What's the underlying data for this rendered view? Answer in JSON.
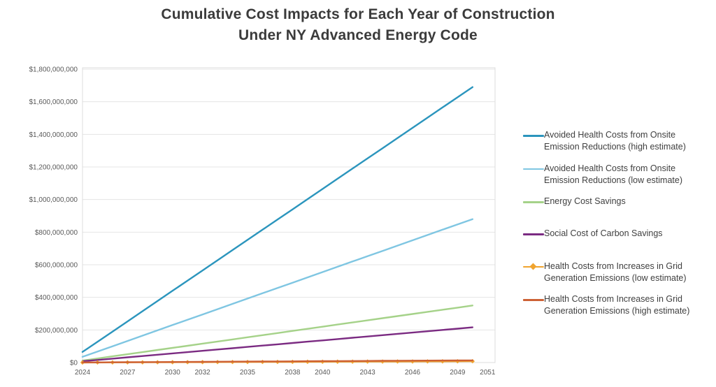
{
  "title": {
    "line1": "Cumulative Cost Impacts for Each Year of Construction",
    "line2": "Under NY Advanced Energy Code"
  },
  "chart_data": {
    "type": "line",
    "title": "Cumulative Cost Impacts for Each Year of Construction Under NY Advanced Energy Code",
    "xlabel": "",
    "ylabel": "",
    "grid": true,
    "legend_position": "right",
    "values_unit": "million USD",
    "x_axis": {
      "min": 2024,
      "max": 2051,
      "ticks": [
        2024,
        2027,
        2030,
        2032,
        2035,
        2038,
        2040,
        2043,
        2046,
        2049,
        2051
      ]
    },
    "y_axis": {
      "min": 0,
      "max": 1800000000,
      "tick_step": 200000000,
      "tick_labels": [
        "$1,800,000,000",
        "$1,600,000,000",
        "$1,400,000,000",
        "$1,200,000,000",
        "$1,000,000,000",
        "$800,000,000",
        "$600,000,000",
        "$400,000,000",
        "$200,000,000",
        "$0"
      ]
    },
    "years": [
      2024,
      2025,
      2026,
      2027,
      2028,
      2029,
      2030,
      2031,
      2032,
      2033,
      2034,
      2035,
      2036,
      2037,
      2038,
      2039,
      2040,
      2041,
      2042,
      2043,
      2044,
      2045,
      2046,
      2047,
      2048,
      2049,
      2050
    ],
    "series": [
      {
        "name": "Avoided Health Costs from Onsite Emission Reductions (high estimate)",
        "color": "#2b95bd",
        "marker": "none",
        "values": [
          65,
          127.5,
          190,
          252.5,
          315,
          377.5,
          440,
          502.5,
          565,
          627.5,
          690,
          752.5,
          815,
          877.5,
          940,
          1002.5,
          1065,
          1127.5,
          1190,
          1252.5,
          1315,
          1377.5,
          1440,
          1502.5,
          1565,
          1627.5,
          1690
        ]
      },
      {
        "name": "Avoided Health Costs from Onsite Emission Reductions (low estimate)",
        "color": "#7fc6e2",
        "marker": "none",
        "values": [
          35,
          67.5,
          100,
          132.5,
          165,
          197.5,
          230,
          262.5,
          295,
          327.5,
          360,
          392.5,
          425,
          457.5,
          490,
          522.5,
          555,
          587.5,
          620,
          652.5,
          685,
          717.5,
          750,
          782.5,
          815,
          847.5,
          880
        ]
      },
      {
        "name": "Energy Cost Savings",
        "color": "#a5d289",
        "marker": "none",
        "values": [
          12,
          25,
          38,
          51,
          64,
          77,
          90,
          103,
          116,
          129,
          142,
          155,
          168,
          181,
          194,
          207,
          220,
          233,
          246,
          259,
          272,
          285,
          298,
          311,
          324,
          337,
          350
        ]
      },
      {
        "name": "Social Cost of Carbon Savings",
        "color": "#7b2b82",
        "marker": "none",
        "values": [
          8,
          16,
          24,
          32,
          40,
          48,
          56,
          64,
          72,
          80,
          88,
          96,
          104,
          112,
          120,
          128,
          136,
          144,
          152,
          160,
          168,
          176,
          184,
          192,
          200,
          208,
          216
        ]
      },
      {
        "name": "Health Costs from Increases in Grid Generation Emissions (low estimate)",
        "color": "#f0a42f",
        "marker": "diamond",
        "values": [
          0.3,
          0.6,
          0.9,
          1.2,
          1.5,
          1.8,
          2.1,
          2.4,
          2.7,
          3.0,
          3.3,
          3.6,
          3.9,
          4.2,
          4.5,
          4.8,
          5.1,
          5.4,
          5.7,
          6.0,
          6.3,
          6.6,
          6.9,
          7.2,
          7.5,
          7.8,
          8.1
        ]
      },
      {
        "name": "Health Costs from Increases in Grid Generation Emissions (high estimate)",
        "color": "#cd6135",
        "marker": "none",
        "values": [
          0.5,
          1.0,
          1.5,
          2.0,
          2.5,
          3.0,
          3.5,
          4.0,
          4.5,
          5.0,
          5.5,
          6.0,
          6.5,
          7.0,
          7.5,
          8.0,
          8.5,
          9.0,
          9.5,
          10.0,
          10.5,
          11.0,
          11.5,
          12.0,
          12.5,
          13.0,
          13.5
        ]
      }
    ]
  }
}
